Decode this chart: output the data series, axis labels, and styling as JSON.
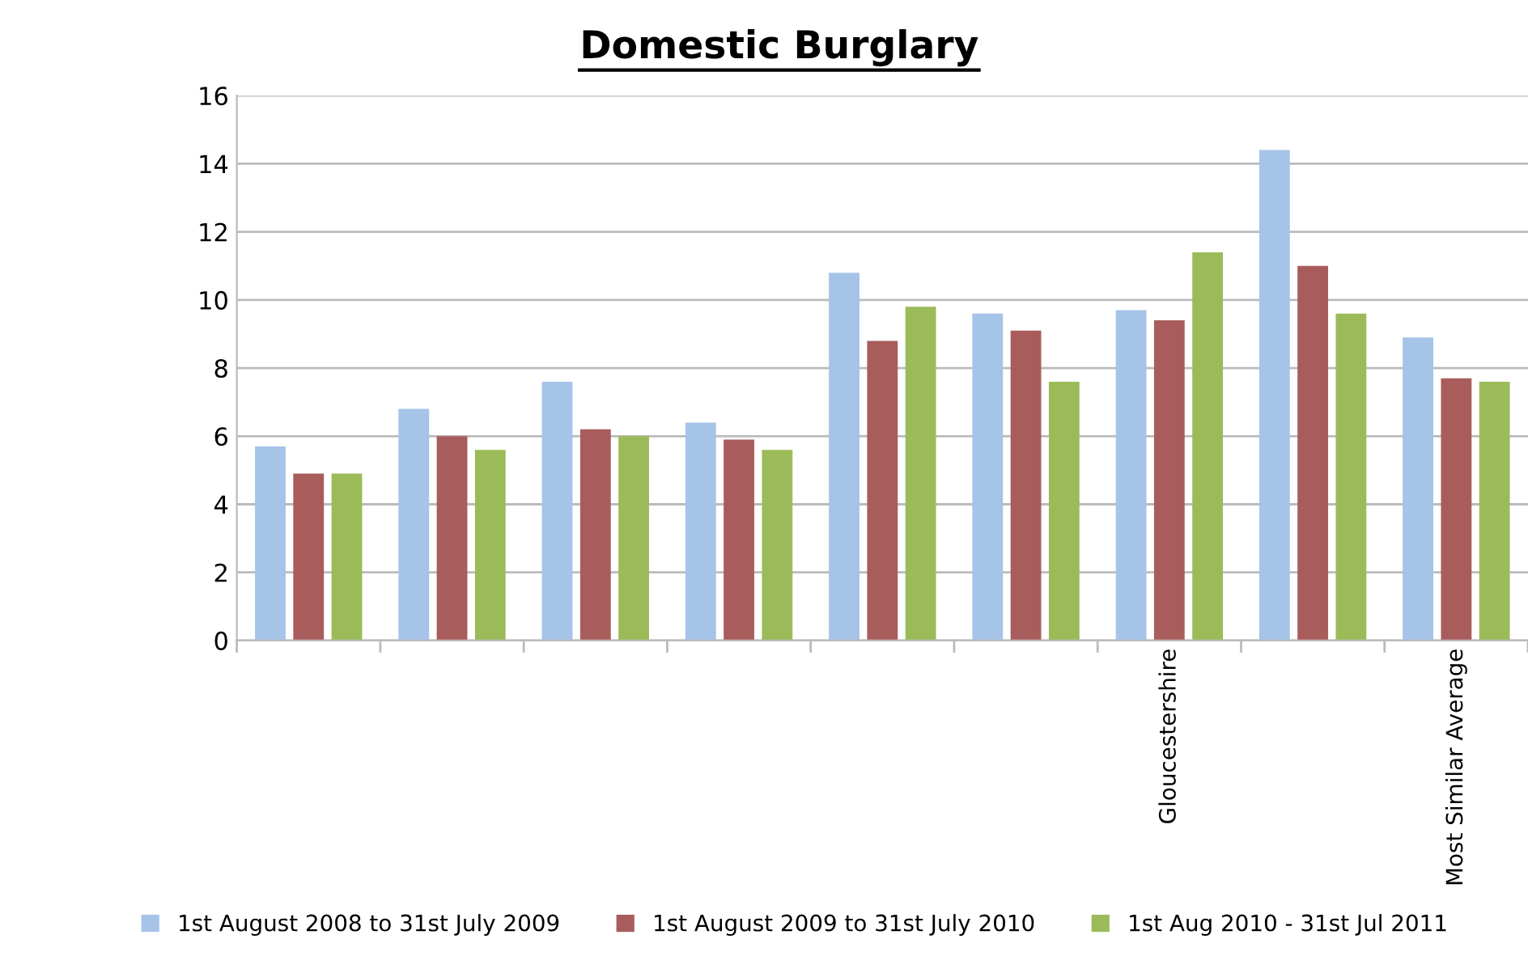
{
  "chart_data": {
    "type": "bar",
    "title": "Domestic Burglary",
    "categories": [
      null,
      null,
      null,
      null,
      null,
      null,
      "Gloucestershire",
      null,
      "Most Similar Average"
    ],
    "series": [
      {
        "name": "1st August 2008 to 31st July 2009",
        "color": "#a6c3e8",
        "values": [
          5.7,
          6.8,
          7.6,
          6.4,
          10.8,
          9.6,
          9.7,
          14.4,
          8.9
        ]
      },
      {
        "name": "1st August 2009 to 31st July 2010",
        "color": "#a95c5c",
        "values": [
          4.9,
          6.0,
          6.2,
          5.9,
          8.8,
          9.1,
          9.4,
          11.0,
          7.7
        ]
      },
      {
        "name": "1st Aug 2010 - 31st Jul 2011",
        "color": "#9bbb59",
        "values": [
          4.9,
          5.6,
          6.0,
          5.6,
          9.8,
          7.6,
          11.4,
          9.6,
          7.6
        ]
      }
    ],
    "ylim": [
      0,
      16
    ],
    "yticks": [
      0,
      2,
      4,
      6,
      8,
      10,
      12,
      14,
      16
    ],
    "grid": "y",
    "legend": "bottom"
  }
}
